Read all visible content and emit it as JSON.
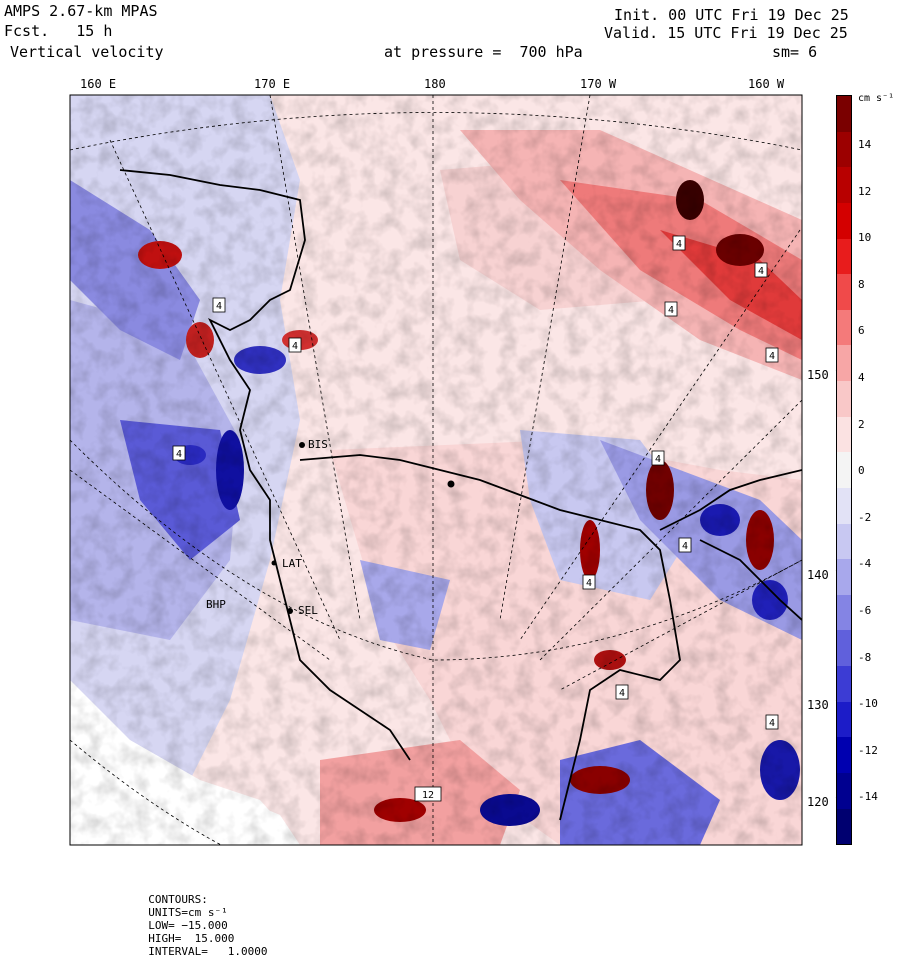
{
  "header": {
    "model": "AMPS 2.67-km MPAS",
    "forecast": "Fcst.   15 h",
    "field": "Vertical velocity",
    "init": "Init. 00 UTC Fri 19 Dec 25",
    "valid": "Valid. 15 UTC Fri 19 Dec 25",
    "level": "at pressure =  700 hPa",
    "smoothing": "sm= 6"
  },
  "longitude_labels": [
    "160 E",
    "170 E",
    "180",
    "170 W",
    "160 W"
  ],
  "latitude_labels": [
    "150 W",
    "140 W",
    "130 W",
    "120 W"
  ],
  "colorbar": {
    "units": "cm s⁻¹",
    "ticks": [
      "14",
      "12",
      "10",
      "8",
      "6",
      "4",
      "2",
      "0",
      "-2",
      "-4",
      "-6",
      "-8",
      "-10",
      "-12",
      "-14"
    ],
    "colors": [
      "#7a0000",
      "#9c0000",
      "#b80000",
      "#d40000",
      "#e81c1c",
      "#f04a4a",
      "#f47a7a",
      "#f7a6a6",
      "#f9c8c8",
      "#fbe2e2",
      "#f4f4f4",
      "#e2e2f6",
      "#c8c8f2",
      "#a8a8ec",
      "#8484e4",
      "#6060dc",
      "#3c3cd4",
      "#1c1cc8",
      "#0000b0",
      "#000090",
      "#000070"
    ]
  },
  "stations": [
    "BIS",
    "SEL",
    "LAT",
    "BHP"
  ],
  "footer": {
    "label": "CONTOURS:",
    "units": "UNITS=cm s⁻¹",
    "low": "LOW= −15.000",
    "high": "HIGH=  15.000",
    "interval": "INTERVAL=   1.0000"
  },
  "map_labels": [
    "4",
    "4",
    "4",
    "4",
    "4",
    "4",
    "4",
    "4",
    "4",
    "4",
    "12",
    "4",
    "4"
  ]
}
